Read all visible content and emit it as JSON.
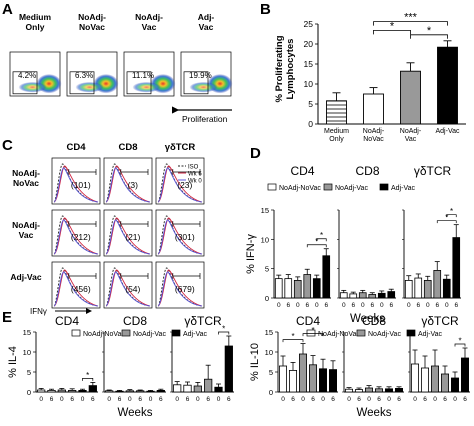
{
  "panel_letters": {
    "a": "A",
    "b": "B",
    "c": "C",
    "d": "D",
    "e": "E"
  },
  "panel_a": {
    "groups": [
      {
        "label": "Medium\nOnly",
        "pct": "4.2%"
      },
      {
        "label": "NoAdj-\nNoVac",
        "pct": "6.3%"
      },
      {
        "label": "NoAdj-\nVac",
        "pct": "11.1%"
      },
      {
        "label": "Adj-\nVac",
        "pct": "19.9%"
      }
    ],
    "proliferation_label": "Proliferation"
  },
  "panel_c": {
    "columns": [
      "CD4",
      "CD8",
      "γδTCR"
    ],
    "rows": [
      {
        "label": "NoAdj-\nNoVac",
        "values": [
          "(101)",
          "(3)",
          "(23)"
        ]
      },
      {
        "label": "NoAdj-\nVac",
        "values": [
          "(212)",
          "(21)",
          "(301)"
        ]
      },
      {
        "label": "Adj-Vac",
        "values": [
          "(456)",
          "(54)",
          "(679)"
        ]
      }
    ],
    "legend": [
      {
        "name": "ISO",
        "color": "#222222",
        "dash": true
      },
      {
        "name": "Wk 6",
        "color": "#d0213f",
        "dash": false
      },
      {
        "name": "Wk 0",
        "color": "#5a55d8",
        "dash": false
      }
    ],
    "xlabel": "IFNγ"
  },
  "chart_data": [
    {
      "panel": "B",
      "type": "bar",
      "categories": [
        "Medium\nOnly",
        "NoAdj-\nNoVac",
        "NoAdj-\nVac",
        "Adj-Vac"
      ],
      "values": [
        5.8,
        7.5,
        13.2,
        19.2
      ],
      "errors": [
        2,
        1.6,
        2.1,
        1.6
      ],
      "fills": [
        "hatch",
        "#ffffff",
        "#999999",
        "#000000"
      ],
      "ylabel": "% Proliferating\nLymphocytes",
      "ylim": [
        0,
        25
      ],
      "yticks": [
        0,
        5,
        10,
        15,
        20,
        25
      ],
      "significance": [
        {
          "from": 2,
          "to": 3,
          "label": "*"
        },
        {
          "from": 1,
          "to": 2,
          "label": "*"
        },
        {
          "from": 1,
          "to": 3,
          "label": "***"
        }
      ]
    },
    {
      "panel": "D",
      "type": "bar",
      "legend": [
        "NoAdj-NoVac",
        "NoAdj-Vac",
        "Adj-Vac"
      ],
      "legend_colors": [
        "#ffffff",
        "#999999",
        "#000000"
      ],
      "ylabel": "% IFN-γ",
      "xlabel": "Weeks",
      "ylim": [
        0,
        15
      ],
      "yticks": [
        0,
        5,
        10,
        15
      ],
      "bar_order": [
        "NoAdj-NoVac",
        "NoAdj-NoVac",
        "NoAdj-Vac",
        "NoAdj-Vac",
        "Adj-Vac",
        "Adj-Vac"
      ],
      "tick_labels": [
        "0",
        "6",
        "0",
        "6",
        "0",
        "6"
      ],
      "subplots": [
        {
          "title": "CD4",
          "values": [
            3.3,
            3.3,
            3.0,
            4.0,
            3.3,
            7.2
          ],
          "errors": [
            0.6,
            0.7,
            0.6,
            0.9,
            0.6,
            1.2
          ],
          "significance": [
            {
              "from": 3,
              "to": 5,
              "label": "*"
            },
            {
              "from": 4,
              "to": 5,
              "label": "*"
            }
          ]
        },
        {
          "title": "CD8",
          "values": [
            0.9,
            0.7,
            0.9,
            0.6,
            0.8,
            1.1
          ],
          "errors": [
            0.4,
            0.3,
            0.4,
            0.3,
            0.4,
            0.4
          ],
          "significance": []
        },
        {
          "title": "γδTCR",
          "values": [
            3.0,
            3.4,
            3.0,
            4.7,
            3.2,
            10.3
          ],
          "errors": [
            0.8,
            0.7,
            0.7,
            1.5,
            0.7,
            2.2
          ],
          "significance": [
            {
              "from": 3,
              "to": 5,
              "label": "*"
            },
            {
              "from": 4,
              "to": 5,
              "label": "*"
            }
          ]
        }
      ]
    },
    {
      "panel": "E-left",
      "type": "bar",
      "legend": [
        "NoAdj-NoVac",
        "NoAdj-Vac",
        "Adj-Vac"
      ],
      "legend_colors": [
        "#ffffff",
        "#999999",
        "#000000"
      ],
      "ylabel": "% IL-4",
      "xlabel": "Weeks",
      "ylim": [
        0,
        15
      ],
      "yticks": [
        0,
        5,
        10,
        15
      ],
      "bar_order": [
        "NoAdj-NoVac",
        "NoAdj-NoVac",
        "NoAdj-Vac",
        "NoAdj-Vac",
        "Adj-Vac",
        "Adj-Vac"
      ],
      "tick_labels": [
        "0",
        "6",
        "0",
        "6",
        "0",
        "6"
      ],
      "subplots": [
        {
          "title": "CD4",
          "values": [
            0.5,
            0.4,
            0.5,
            0.4,
            0.4,
            1.6
          ],
          "errors": [
            0.4,
            0.3,
            0.4,
            0.4,
            0.3,
            0.8
          ],
          "significance": [
            {
              "from": 4,
              "to": 5,
              "label": "*"
            }
          ]
        },
        {
          "title": "CD8",
          "values": [
            0.3,
            0.2,
            0.3,
            0.3,
            0.2,
            0.4
          ],
          "errors": [
            0.2,
            0.2,
            0.3,
            0.2,
            0.2,
            0.3
          ],
          "significance": []
        },
        {
          "title": "γδTCR",
          "values": [
            1.8,
            1.7,
            1.5,
            3.2,
            1.2,
            11.5
          ],
          "errors": [
            0.8,
            0.8,
            0.9,
            3.5,
            0.8,
            2.5
          ],
          "significance": [
            {
              "from": 4,
              "to": 5,
              "label": "*"
            }
          ]
        }
      ]
    },
    {
      "panel": "E-right",
      "type": "bar",
      "legend": [
        "NoAdj-NoVac",
        "NoAdj-Vac",
        "Adj-Vac"
      ],
      "legend_colors": [
        "#ffffff",
        "#999999",
        "#000000"
      ],
      "ylabel": "% IL-10",
      "xlabel": "Weeks",
      "ylim": [
        0,
        15
      ],
      "yticks": [
        0,
        5,
        10,
        15
      ],
      "bar_order": [
        "NoAdj-NoVac",
        "NoAdj-NoVac",
        "NoAdj-Vac",
        "NoAdj-Vac",
        "Adj-Vac",
        "Adj-Vac"
      ],
      "tick_labels": [
        "0",
        "6",
        "0",
        "6",
        "0",
        "6"
      ],
      "subplots": [
        {
          "title": "CD4",
          "values": [
            6.5,
            5.4,
            9.5,
            6.8,
            5.8,
            5.6
          ],
          "errors": [
            2.5,
            2.0,
            2.6,
            2.3,
            2.4,
            2.2
          ],
          "significance": [
            {
              "from": 0,
              "to": 2,
              "label": "*"
            },
            {
              "from": 2,
              "to": 4,
              "label": "*"
            }
          ]
        },
        {
          "title": "CD8",
          "values": [
            0.7,
            0.6,
            1.0,
            0.8,
            0.8,
            0.9
          ],
          "errors": [
            0.4,
            0.4,
            0.6,
            0.5,
            0.5,
            0.4
          ],
          "significance": []
        },
        {
          "title": "γδTCR",
          "values": [
            7.0,
            6.0,
            6.5,
            4.5,
            3.5,
            8.5
          ],
          "errors": [
            3.5,
            3.0,
            4.0,
            2.0,
            1.5,
            2.5
          ],
          "significance": [
            {
              "from": 4,
              "to": 5,
              "label": "*"
            }
          ]
        }
      ]
    }
  ]
}
